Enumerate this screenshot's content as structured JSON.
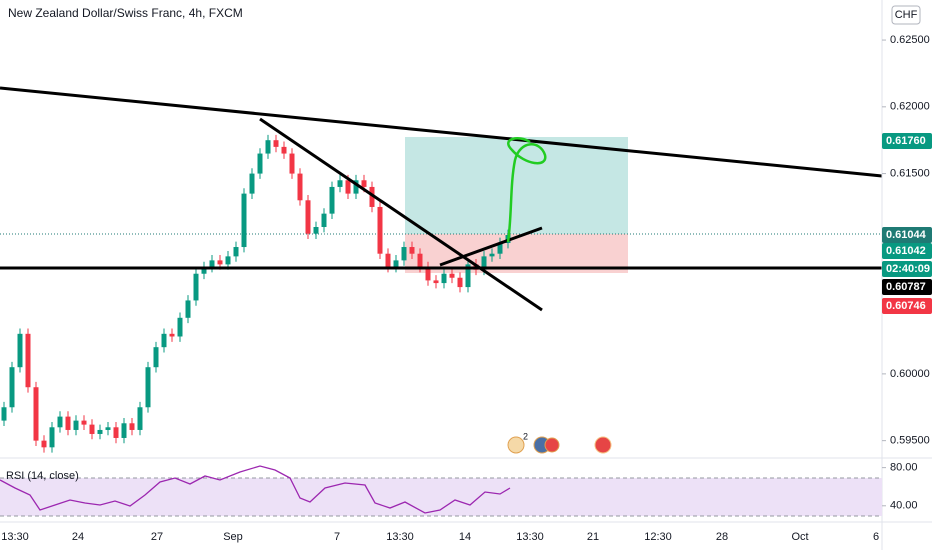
{
  "chart_data": {
    "type": "candlestick",
    "title": "New Zealand Dollar/Swiss Franc, 4h, FXCM",
    "currency": "CHF",
    "up_color": "#089981",
    "down_color": "#f23645",
    "candles": [
      [
        0.5965,
        0.5979,
        0.5961,
        0.5975
      ],
      [
        0.5975,
        0.6009,
        0.5971,
        0.6005
      ],
      [
        0.6005,
        0.6034,
        0.6001,
        0.603
      ],
      [
        0.603,
        0.6034,
        0.5986,
        0.599
      ],
      [
        0.599,
        0.5994,
        0.5946,
        0.595
      ],
      [
        0.595,
        0.5954,
        0.5941,
        0.5945
      ],
      [
        0.5945,
        0.5964,
        0.5941,
        0.596
      ],
      [
        0.596,
        0.5972,
        0.5956,
        0.5968
      ],
      [
        0.5968,
        0.5972,
        0.5954,
        0.5958
      ],
      [
        0.5958,
        0.5969,
        0.5954,
        0.5965
      ],
      [
        0.5965,
        0.5969,
        0.5958,
        0.5962
      ],
      [
        0.5962,
        0.5966,
        0.5951,
        0.5955
      ],
      [
        0.5955,
        0.5962,
        0.5951,
        0.5958
      ],
      [
        0.5958,
        0.5964,
        0.5954,
        0.596
      ],
      [
        0.596,
        0.5964,
        0.5948,
        0.5952
      ],
      [
        0.5952,
        0.5967,
        0.5948,
        0.5963
      ],
      [
        0.5963,
        0.5967,
        0.5954,
        0.5958
      ],
      [
        0.5958,
        0.5979,
        0.5954,
        0.5975
      ],
      [
        0.5975,
        0.6009,
        0.5971,
        0.6005
      ],
      [
        0.6005,
        0.6024,
        0.6001,
        0.602
      ],
      [
        0.602,
        0.6034,
        0.6016,
        0.603
      ],
      [
        0.603,
        0.6034,
        0.6024,
        0.6028
      ],
      [
        0.6028,
        0.6046,
        0.6024,
        0.6042
      ],
      [
        0.6042,
        0.6059,
        0.6038,
        0.6055
      ],
      [
        0.6055,
        0.6079,
        0.6051,
        0.6075
      ],
      [
        0.6075,
        0.6084,
        0.6071,
        0.608
      ],
      [
        0.608,
        0.6089,
        0.6076,
        0.6085
      ],
      [
        0.6085,
        0.6089,
        0.6078,
        0.6082
      ],
      [
        0.6082,
        0.6092,
        0.6078,
        0.6088
      ],
      [
        0.6088,
        0.6099,
        0.6084,
        0.6095
      ],
      [
        0.6095,
        0.6139,
        0.6091,
        0.6135
      ],
      [
        0.6135,
        0.6154,
        0.6131,
        0.615
      ],
      [
        0.615,
        0.6169,
        0.6146,
        0.6165
      ],
      [
        0.6165,
        0.6179,
        0.6161,
        0.6175
      ],
      [
        0.6175,
        0.6179,
        0.6166,
        0.617
      ],
      [
        0.617,
        0.6174,
        0.6161,
        0.6165
      ],
      [
        0.6165,
        0.6169,
        0.6146,
        0.615
      ],
      [
        0.615,
        0.6154,
        0.6126,
        0.613
      ],
      [
        0.613,
        0.6134,
        0.6101,
        0.6105
      ],
      [
        0.6105,
        0.6114,
        0.6101,
        0.611
      ],
      [
        0.611,
        0.6124,
        0.6106,
        0.612
      ],
      [
        0.612,
        0.6144,
        0.6116,
        0.614
      ],
      [
        0.614,
        0.6149,
        0.6136,
        0.6145
      ],
      [
        0.6145,
        0.6149,
        0.6131,
        0.6135
      ],
      [
        0.6135,
        0.6149,
        0.6131,
        0.6145
      ],
      [
        0.6145,
        0.6149,
        0.6136,
        0.614
      ],
      [
        0.614,
        0.6144,
        0.6121,
        0.6125
      ],
      [
        0.6125,
        0.6129,
        0.6086,
        0.609
      ],
      [
        0.609,
        0.6094,
        0.6076,
        0.608
      ],
      [
        0.608,
        0.6089,
        0.6076,
        0.6085
      ],
      [
        0.6085,
        0.6099,
        0.6081,
        0.6095
      ],
      [
        0.6095,
        0.6099,
        0.6086,
        0.609
      ],
      [
        0.609,
        0.6094,
        0.6076,
        0.608
      ],
      [
        0.608,
        0.6084,
        0.6066,
        0.607
      ],
      [
        0.607,
        0.6074,
        0.6064,
        0.6068
      ],
      [
        0.6068,
        0.6079,
        0.6064,
        0.6075
      ],
      [
        0.6075,
        0.6079,
        0.6068,
        0.6072
      ],
      [
        0.6072,
        0.6076,
        0.6061,
        0.6065
      ],
      [
        0.6065,
        0.6086,
        0.6061,
        0.6082
      ],
      [
        0.6082,
        0.6086,
        0.6074,
        0.6078
      ],
      [
        0.6078,
        0.6092,
        0.6074,
        0.6088
      ],
      [
        0.6088,
        0.6094,
        0.6084,
        0.609
      ],
      [
        0.609,
        0.6102,
        0.6086,
        0.6098
      ],
      [
        0.6098,
        0.6108,
        0.6094,
        0.6104
      ]
    ],
    "ylim": [
      0.5937,
      0.628
    ],
    "yticks": [
      {
        "value": 0.625,
        "label": "0.62500"
      },
      {
        "value": 0.62,
        "label": "0.62000"
      },
      {
        "value": 0.615,
        "label": "0.61500"
      },
      {
        "value": 0.6,
        "label": "0.60000"
      },
      {
        "value": 0.595,
        "label": "0.59500"
      }
    ],
    "xticks": [
      "13:30",
      "24",
      "27",
      "Sep",
      "7",
      "13:30",
      "14",
      "13:30",
      "21",
      "12:30",
      "28",
      "Oct",
      "6"
    ],
    "price_tags": [
      {
        "label": "0.61760",
        "color": "#089981"
      },
      {
        "label": "0.61044",
        "color": "#1f7a74"
      },
      {
        "label": "0.61042",
        "color": "#089981"
      },
      {
        "label": "02:40:09",
        "color": "#089981"
      },
      {
        "label": "0.60787",
        "color": "#000000"
      },
      {
        "label": "0.60746",
        "color": "#f23645"
      }
    ],
    "events_badge": "2",
    "rsi": {
      "title": "RSI (14, close)",
      "color": "#9c27b0",
      "ylim": [
        23,
        88
      ],
      "yticks": [
        {
          "value": 80,
          "label": "80.00"
        },
        {
          "value": 40,
          "label": "40.00"
        }
      ]
    }
  }
}
